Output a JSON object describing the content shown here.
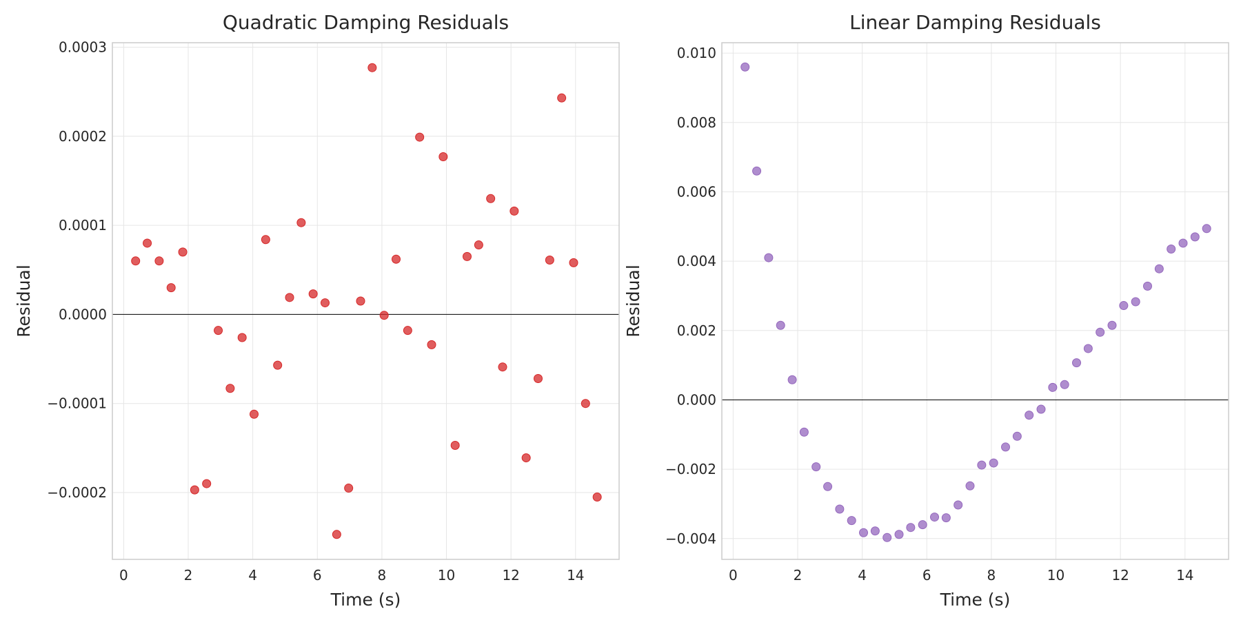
{
  "chart_data": [
    {
      "type": "scatter",
      "title": "Quadratic Damping Residuals",
      "xlabel": "Time (s)",
      "ylabel": "Residual",
      "xlim": [
        -0.35,
        15.35
      ],
      "ylim": [
        -0.000275,
        0.000305
      ],
      "xticks": [
        0,
        2,
        4,
        6,
        8,
        10,
        12,
        14
      ],
      "yticks": [
        -0.0002,
        -0.0001,
        0.0,
        0.0001,
        0.0002,
        0.0003
      ],
      "ytick_labels": [
        "−0.0002",
        "−0.0001",
        "0.0000",
        "0.0001",
        "0.0002",
        "0.0003"
      ],
      "grid": true,
      "zero_line": true,
      "color": "#d62728",
      "x": [
        0.37,
        0.73,
        1.1,
        1.47,
        1.83,
        2.2,
        2.57,
        2.93,
        3.3,
        3.67,
        4.04,
        4.4,
        4.77,
        5.14,
        5.5,
        5.87,
        6.24,
        6.6,
        6.97,
        7.34,
        7.7,
        8.07,
        8.44,
        8.8,
        9.17,
        9.54,
        9.9,
        10.27,
        10.64,
        11.0,
        11.37,
        11.74,
        12.1,
        12.47,
        12.84,
        13.2,
        13.57,
        13.94,
        14.31,
        14.67
      ],
      "y": [
        6e-05,
        8e-05,
        6e-05,
        3e-05,
        7e-05,
        -0.000197,
        -0.00019,
        -1.8e-05,
        -8.3e-05,
        -2.6e-05,
        -0.000112,
        8.4e-05,
        -5.7e-05,
        1.9e-05,
        0.000103,
        2.3e-05,
        1.3e-05,
        -0.000247,
        -0.000195,
        1.5e-05,
        0.000277,
        -1e-06,
        6.2e-05,
        -1.8e-05,
        0.000199,
        -3.4e-05,
        0.000177,
        -0.000147,
        6.5e-05,
        7.8e-05,
        0.00013,
        -5.9e-05,
        0.000116,
        -0.000161,
        -7.2e-05,
        6.1e-05,
        0.000243,
        5.8e-05,
        -0.0001,
        -0.000205
      ]
    },
    {
      "type": "scatter",
      "title": "Linear Damping Residuals",
      "xlabel": "Time (s)",
      "ylabel": "Residual",
      "xlim": [
        -0.35,
        15.35
      ],
      "ylim": [
        -0.0046,
        0.0103
      ],
      "xticks": [
        0,
        2,
        4,
        6,
        8,
        10,
        12,
        14
      ],
      "yticks": [
        -0.004,
        -0.002,
        0.0,
        0.002,
        0.004,
        0.006,
        0.008,
        0.01
      ],
      "ytick_labels": [
        "−0.004",
        "−0.002",
        "0.000",
        "0.002",
        "0.004",
        "0.006",
        "0.008",
        "0.010"
      ],
      "grid": true,
      "zero_line": true,
      "color": "#9467bd",
      "x": [
        0.37,
        0.73,
        1.1,
        1.47,
        1.83,
        2.2,
        2.57,
        2.93,
        3.3,
        3.67,
        4.04,
        4.4,
        4.77,
        5.14,
        5.5,
        5.87,
        6.24,
        6.6,
        6.97,
        7.34,
        7.7,
        8.07,
        8.44,
        8.8,
        9.17,
        9.54,
        9.9,
        10.27,
        10.64,
        11.0,
        11.37,
        11.74,
        12.1,
        12.47,
        12.84,
        13.2,
        13.57,
        13.94,
        14.31,
        14.67
      ],
      "y": [
        0.0096,
        0.0066,
        0.0041,
        0.00215,
        0.00058,
        -0.00093,
        -0.00193,
        -0.0025,
        -0.00315,
        -0.00348,
        -0.00383,
        -0.00378,
        -0.00397,
        -0.00388,
        -0.00368,
        -0.0036,
        -0.00338,
        -0.0034,
        -0.00303,
        -0.00248,
        -0.00188,
        -0.00182,
        -0.00136,
        -0.00105,
        -0.00044,
        -0.00027,
        0.00036,
        0.00044,
        0.00107,
        0.00148,
        0.00195,
        0.00215,
        0.00272,
        0.00283,
        0.00328,
        0.00378,
        0.00435,
        0.00452,
        0.0047,
        0.00494
      ]
    }
  ]
}
